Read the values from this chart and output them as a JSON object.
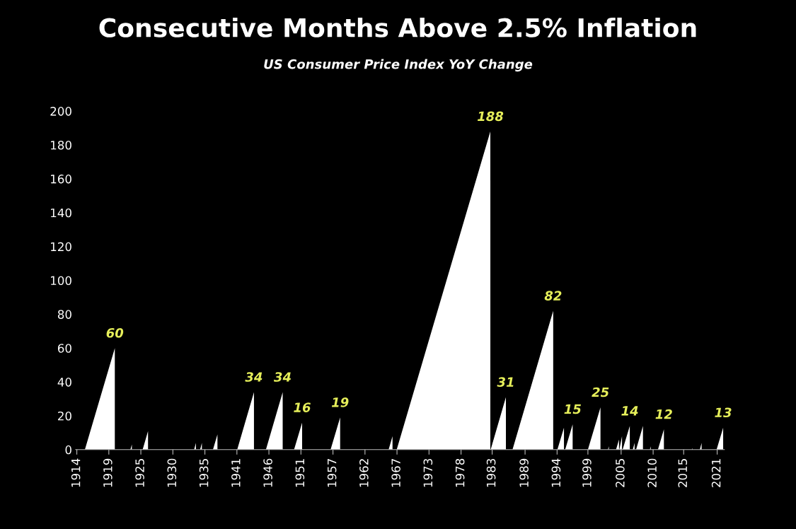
{
  "chart_data": {
    "type": "area",
    "title": "Consecutive Months Above 2.5% Inflation",
    "subtitle": "US Consumer Price Index YoY Change",
    "x": [
      1915.35,
      1920.35,
      1920.35,
      1922.95,
      1923.2,
      1923.2,
      1925.0,
      1925.9,
      1925.9,
      1933.6,
      1933.9,
      1933.9,
      1934.6,
      1934.9,
      1934.9,
      1936.75,
      1937.5,
      1937.5,
      1940.8,
      1943.6,
      1943.6,
      1945.6,
      1948.4,
      1948.4,
      1950.3,
      1951.65,
      1951.65,
      1956.4,
      1958.0,
      1958.0,
      1966.1,
      1966.75,
      1966.75,
      1967.45,
      1983.1,
      1983.1,
      1983.15,
      1985.7,
      1985.7,
      1986.8,
      1993.6,
      1993.6,
      1994.3,
      1995.4,
      1995.4,
      1995.6,
      1996.85,
      1996.85,
      1999.4,
      2001.5,
      2001.5,
      2002.75,
      2002.9,
      2002.9,
      2004.1,
      2004.6,
      2004.6,
      2004.65,
      2005.1,
      2005.1,
      2005.2,
      2006.4,
      2006.4,
      2006.9,
      2007.2,
      2007.2,
      2007.45,
      2008.6,
      2008.6,
      2009.75,
      2009.9,
      2009.9,
      2011.1,
      2012.1,
      2012.1,
      2016.8,
      2016.9,
      2016.9,
      2018.1,
      2018.4,
      2018.4,
      2020.9,
      2022.0,
      2022.0
    ],
    "series": [
      {
        "color": "#ffffff",
        "values": [
          0,
          60,
          0,
          0,
          3,
          0,
          0,
          11,
          0,
          0,
          4,
          0,
          0,
          4,
          0,
          0,
          9,
          0,
          0,
          34,
          0,
          0,
          34,
          0,
          0,
          16,
          0,
          0,
          19,
          0,
          0,
          8,
          0,
          0,
          188,
          0,
          0,
          31,
          0,
          0,
          82,
          0,
          0,
          13,
          0,
          0,
          15,
          0,
          0,
          25,
          0,
          0,
          2,
          0,
          0,
          6,
          0,
          0,
          8,
          0,
          0,
          14,
          0,
          0,
          4,
          0,
          0,
          14,
          0,
          0,
          2,
          0,
          0,
          12,
          0,
          0,
          1,
          0,
          0,
          4,
          0,
          0,
          13,
          0
        ]
      }
    ],
    "xlim": [
      1913.8,
      2022.2
    ],
    "ylim": [
      0,
      200
    ],
    "yticks": [
      0,
      20,
      40,
      60,
      80,
      100,
      120,
      140,
      160,
      180,
      200
    ],
    "xticks": [
      {
        "value": 1914,
        "label": "1914"
      },
      {
        "value": 1919.35,
        "label": "1919"
      },
      {
        "value": 1924.7,
        "label": "1925"
      },
      {
        "value": 1930.05,
        "label": "1930"
      },
      {
        "value": 1935.4,
        "label": "1935"
      },
      {
        "value": 1940.75,
        "label": "1941"
      },
      {
        "value": 1946.1,
        "label": "1946"
      },
      {
        "value": 1951.45,
        "label": "1951"
      },
      {
        "value": 1956.8,
        "label": "1957"
      },
      {
        "value": 1962.15,
        "label": "1962"
      },
      {
        "value": 1967.5,
        "label": "1967"
      },
      {
        "value": 1972.85,
        "label": "1973"
      },
      {
        "value": 1978.2,
        "label": "1978"
      },
      {
        "value": 1983.4,
        "label": "1983"
      },
      {
        "value": 1988.9,
        "label": "1989"
      },
      {
        "value": 1994.25,
        "label": "1994"
      },
      {
        "value": 1999.4,
        "label": "1999"
      },
      {
        "value": 2004.95,
        "label": "2005"
      },
      {
        "value": 2010.3,
        "label": "2010"
      },
      {
        "value": 2015.4,
        "label": "2015"
      },
      {
        "value": 2021,
        "label": "2021"
      }
    ],
    "annotations": [
      {
        "text": "60",
        "x": 1920.35,
        "y": 60
      },
      {
        "text": "34",
        "x": 1943.6,
        "y": 34
      },
      {
        "text": "34",
        "x": 1948.4,
        "y": 34
      },
      {
        "text": "16",
        "x": 1951.65,
        "y": 16
      },
      {
        "text": "19",
        "x": 1958.0,
        "y": 19
      },
      {
        "text": "188",
        "x": 1983.1,
        "y": 188
      },
      {
        "text": "31",
        "x": 1985.7,
        "y": 31
      },
      {
        "text": "82",
        "x": 1993.6,
        "y": 82
      },
      {
        "text": "15",
        "x": 1996.85,
        "y": 15
      },
      {
        "text": "25",
        "x": 2001.5,
        "y": 25
      },
      {
        "text": "14",
        "x": 2006.4,
        "y": 14
      },
      {
        "text": "12",
        "x": 2012.1,
        "y": 12
      },
      {
        "text": "13",
        "x": 2022.0,
        "y": 13
      }
    ],
    "grid": false
  }
}
